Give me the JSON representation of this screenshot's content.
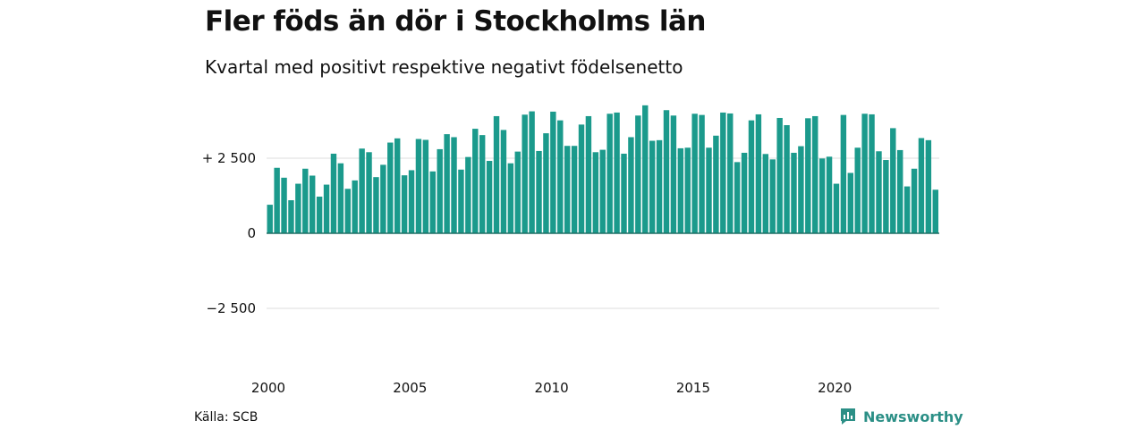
{
  "header": {
    "title": "Fler föds än dör i Stockholms län",
    "subtitle": "Kvartal med positivt respektive negativt födelsenetto"
  },
  "footer": {
    "source": "Källa: SCB",
    "brand": "Newsworthy",
    "brand_icon": "bar-chart-icon"
  },
  "colors": {
    "positive": "#1b9a8c",
    "baseline": "#1e6f65",
    "grid": "#dddddd",
    "brand": "#2b8f86"
  },
  "chart_data": {
    "type": "bar",
    "y_ticks": [
      {
        "value": 2500,
        "label": "+ 2 500"
      },
      {
        "value": 0,
        "label": "0"
      },
      {
        "value": -2500,
        "label": "−2 500"
      }
    ],
    "x_ticks": [
      {
        "value": 2000,
        "label": "2000"
      },
      {
        "value": 2005,
        "label": "2005"
      },
      {
        "value": 2010,
        "label": "2010"
      },
      {
        "value": 2015,
        "label": "2015"
      },
      {
        "value": 2020,
        "label": "2020"
      }
    ],
    "ylim": [
      -4300,
      4300
    ],
    "grid": true,
    "series": [
      {
        "start_year": 2000,
        "values": [
          950,
          2180,
          1850,
          1100,
          1650,
          2150,
          1920,
          1220,
          1620,
          2650,
          2330,
          1480,
          1760,
          2820,
          2700,
          1870,
          2280,
          3020,
          3160,
          1930,
          2100,
          3140,
          3110,
          2060,
          2800,
          3300,
          3200,
          2120,
          2540,
          3480,
          3270,
          2410,
          3900,
          3440,
          2330,
          2720,
          3950,
          4060,
          2740,
          3330,
          4050,
          3760,
          2910,
          2910,
          3620,
          3900,
          2700,
          2780,
          3980,
          4020,
          2650,
          3200,
          3920,
          4260,
          3080,
          3100,
          4100,
          3920,
          2830,
          2850,
          3980,
          3940,
          2850,
          3250,
          4020,
          3990,
          2370,
          2680,
          3760,
          3960,
          2640,
          2460,
          3840,
          3600,
          2680,
          2900,
          3830,
          3900,
          2490,
          2550,
          1650,
          3940,
          2010,
          2850,
          3980,
          3960,
          2730,
          2440,
          3500,
          2770,
          1560,
          2150,
          3170,
          3100,
          1450
        ]
      }
    ]
  }
}
